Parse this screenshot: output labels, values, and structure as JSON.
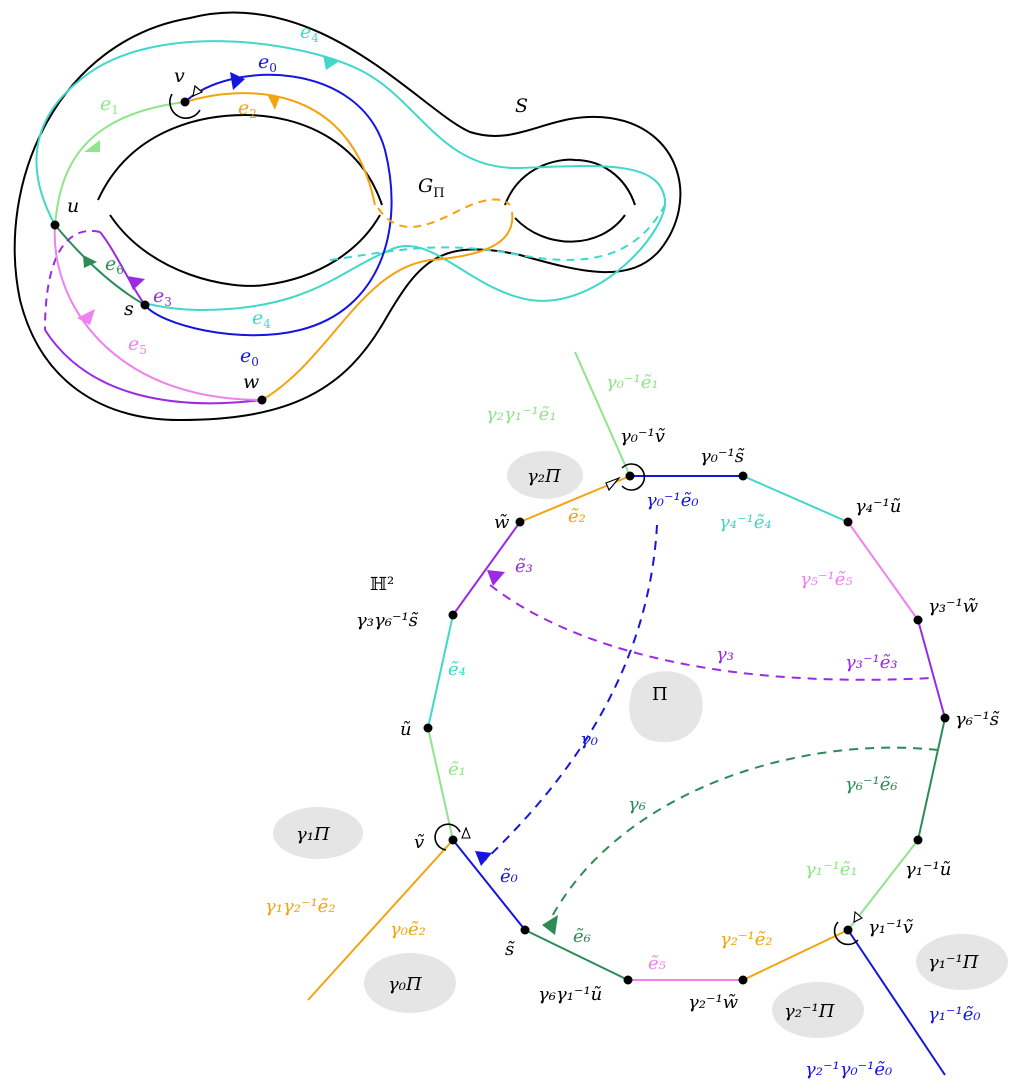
{
  "colors": {
    "black": "#000000",
    "cyan": "#3fd8c9",
    "blue": "#1515e0",
    "green": "#8ee58a",
    "orange": "#f4a30f",
    "darkgreen": "#2e8b57",
    "purple": "#9a2be2",
    "pink": "#ee82ee",
    "gray": "#e5e5e5"
  },
  "surface": {
    "S": "S",
    "G": "G",
    "G_sub": "Π",
    "v": "v",
    "u": "u",
    "s": "s",
    "w": "w",
    "e0_top": "e",
    "e0_top_sub": "0",
    "e0_bot": "e",
    "e0_bot_sub": "0",
    "e1": "e",
    "e1_sub": "1",
    "e2": "e",
    "e2_sub": "2",
    "e3": "e",
    "e3_sub": "3",
    "e4_top": "e",
    "e4_top_sub": "4",
    "e4_bot": "e",
    "e4_bot_sub": "4",
    "e5": "e",
    "e5_sub": "5",
    "e6": "e",
    "e6_sub": "6"
  },
  "polygon": {
    "H2": "ℍ²",
    "Pi": "Π",
    "regions": {
      "g2Pi": "γ₂Π",
      "g1Pi": "γ₁Π",
      "g0Pi": "γ₀Π",
      "g2invPi": "γ₂⁻¹Π",
      "g1invPi": "γ₁⁻¹Π"
    },
    "vertices": {
      "g0inv_v": "γ₀⁻¹ṽ",
      "g0inv_s": "γ₀⁻¹s̃",
      "g4inv_u": "γ₄⁻¹ũ",
      "g3inv_w": "γ₃⁻¹w̃",
      "g6inv_s": "γ₆⁻¹s̃",
      "g1inv_u": "γ₁⁻¹ũ",
      "g1inv_v": "γ₁⁻¹ṽ",
      "g2inv_w": "γ₂⁻¹w̃",
      "g6g1inv_u": "γ₆γ₁⁻¹ũ",
      "s": "s̃",
      "v": "ṽ",
      "u": "ũ",
      "g3g6inv_s": "γ₃γ₆⁻¹s̃",
      "w": "w̃"
    },
    "edges": {
      "g0inv_e1": "γ₀⁻¹ẽ₁",
      "g2g1inv_e1": "γ₂γ₁⁻¹ẽ₁",
      "g0inv_e0": "γ₀⁻¹ẽ₀",
      "g4inv_e4": "γ₄⁻¹ẽ₄",
      "g5inv_e5": "γ₅⁻¹ẽ₅",
      "g3inv_e3": "γ₃⁻¹ẽ₃",
      "g6inv_e6": "γ₆⁻¹ẽ₆",
      "g1inv_e1": "γ₁⁻¹ẽ₁",
      "g2inv_e2": "γ₂⁻¹ẽ₂",
      "g1inv_e0": "γ₁⁻¹ẽ₀",
      "g2invg0inv_e0": "γ₂⁻¹γ₀⁻¹ẽ₀",
      "e5": "ẽ₅",
      "e6": "ẽ₆",
      "e0": "ẽ₀",
      "g0_e2": "γ₀ẽ₂",
      "g1g2inv_e2": "γ₁γ₂⁻¹ẽ₂",
      "e1": "ẽ₁",
      "e4": "ẽ₄",
      "e3": "ẽ₃",
      "e2": "ẽ₂"
    },
    "gammas": {
      "g0": "γ₀",
      "g3": "γ₃",
      "g6": "γ₆"
    }
  }
}
